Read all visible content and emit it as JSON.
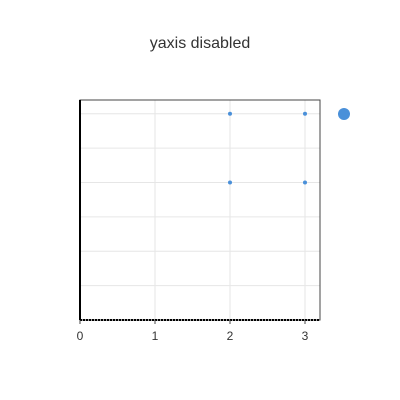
{
  "chart_data": {
    "type": "scatter",
    "title": "yaxis disabled",
    "xlabel": "",
    "ylabel": "",
    "xlim": [
      0,
      3.2
    ],
    "ylim": [
      0,
      3.2
    ],
    "x_ticks": [
      0,
      1,
      2,
      3
    ],
    "yaxis_visible": false,
    "grid": true,
    "legend": "right",
    "series": [
      {
        "color": "#4a90d9",
        "points": [
          [
            2,
            3
          ],
          [
            3,
            3
          ],
          [
            2,
            2
          ],
          [
            3,
            2
          ]
        ]
      }
    ]
  }
}
